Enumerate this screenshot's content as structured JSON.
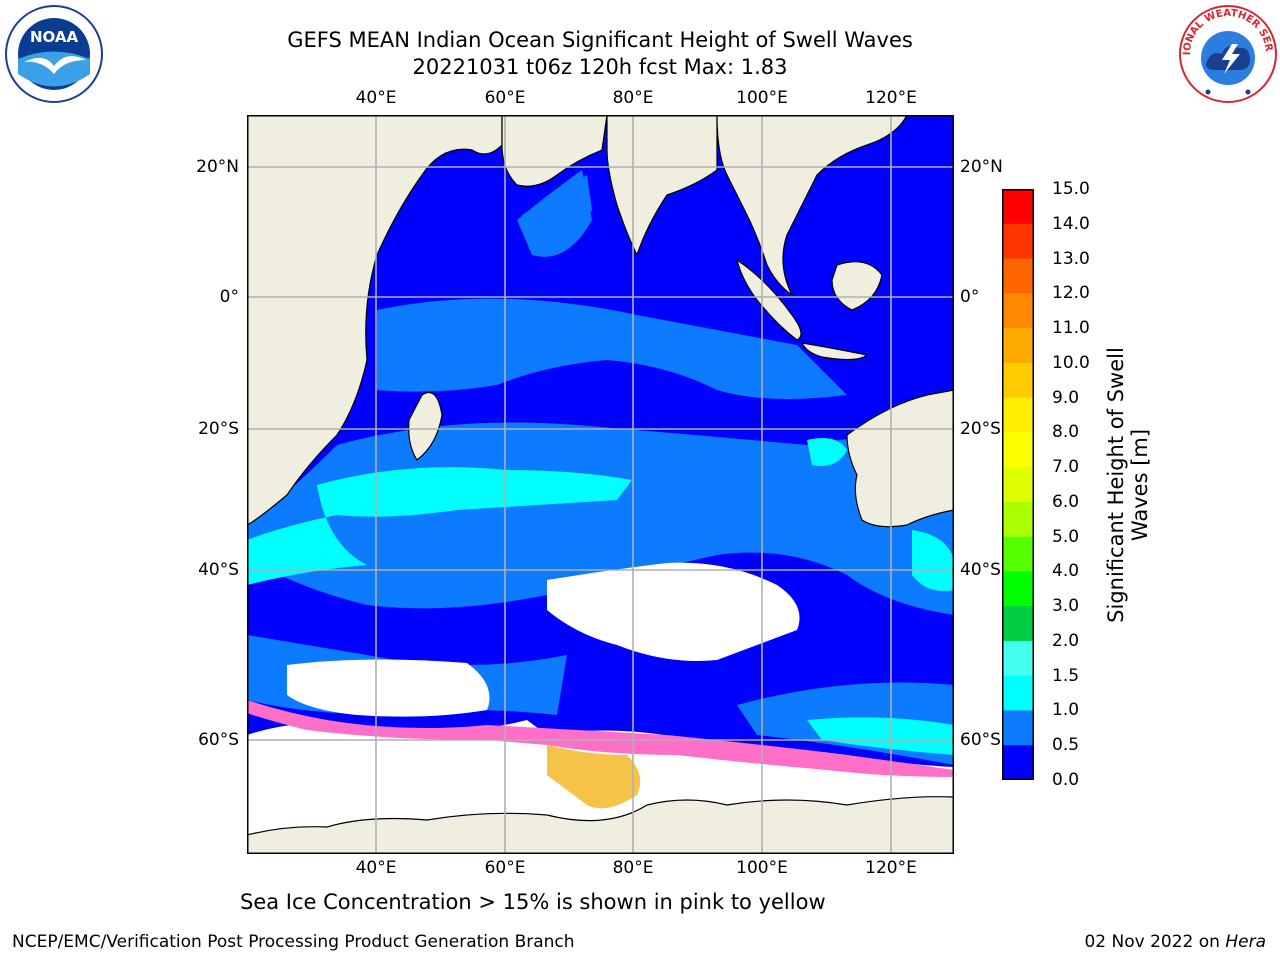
{
  "title": {
    "line1": "GEFS MEAN Indian Ocean Significant Height of Swell Waves",
    "line2": "20221031 t06z 120h fcst   Max: 1.83"
  },
  "logos": {
    "left": {
      "icon": "noaa-logo",
      "text": "NOAA",
      "ring_text": "NATIONAL OCEANIC AND ATMOSPHERIC ADMINISTRATION · U.S. DEPARTMENT OF COMMERCE"
    },
    "right": {
      "icon": "national-weather-service-logo",
      "ring_text": "NATIONAL WEATHER SERVICE"
    }
  },
  "map": {
    "lon_labels": [
      "40°E",
      "60°E",
      "80°E",
      "100°E",
      "120°E"
    ],
    "lat_labels": [
      "20°N",
      "0°",
      "20°S",
      "40°S",
      "60°S"
    ],
    "colors": {
      "land": "#efeedf",
      "ocean_low": "#0000ff",
      "ocean_mid": "#0c7bff",
      "ocean_high": "#00ffff",
      "ice_white": "#ffffff",
      "ice_pink": "#ff6ec7",
      "ice_yellow": "#f5c34a",
      "grid": "#b0b0b0"
    }
  },
  "colorbar": {
    "label": "Significant Height of Swell Waves [m]",
    "ticks": [
      "15.0",
      "14.0",
      "13.0",
      "12.0",
      "11.0",
      "10.0",
      "9.0",
      "8.0",
      "7.0",
      "6.0",
      "5.0",
      "4.0",
      "3.0",
      "2.0",
      "1.5",
      "1.0",
      "0.5",
      "0.0"
    ],
    "colors": [
      "#ff0000",
      "#ff3300",
      "#ff6600",
      "#ff8800",
      "#ffaa00",
      "#ffcc00",
      "#ffee00",
      "#ffff00",
      "#ddff00",
      "#aaff00",
      "#55ff00",
      "#00ff00",
      "#00cc44",
      "#55ff88",
      "#99ffee",
      "#44ffee",
      "#00ffff",
      "#0c7bff",
      "#0000ff"
    ]
  },
  "ice_note": "Sea Ice Concentration > 15% is shown in pink to yellow",
  "footer": {
    "left": "NCEP/EMC/Verification Post Processing Product Generation Branch",
    "right_date": "02 Nov 2022 on ",
    "right_host": "Hera"
  }
}
